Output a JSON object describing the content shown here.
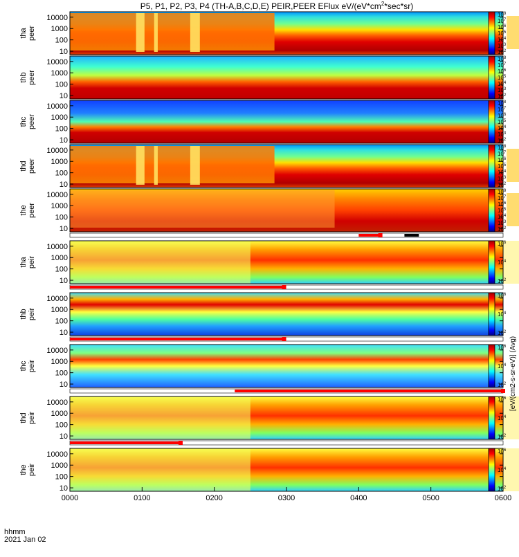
{
  "chart_data": {
    "type": "heatmap",
    "title": "P5, P1, P2, P3, P4 (TH-A,B,C,D,E) PEIR,PEER EFlux eV/(eV*cm",
    "title_sup": "2",
    "title_tail": "*sec*sr)",
    "date_label": "2021 Jan 02",
    "time_label": "hhmm",
    "x_ticks": [
      "0000",
      "0100",
      "0200",
      "0300",
      "0400",
      "0500",
      "0600"
    ],
    "x_range_min": [
      0,
      360
    ],
    "y_scale": "log",
    "y_ticks": [
      "10",
      "100",
      "1000",
      "10000"
    ],
    "colorbar": {
      "label": "[eV/(cm2-s-sr-eV)] (Avg)",
      "ticks_peer": [
        "10",
        "10",
        "10",
        "10",
        "10",
        "10",
        "10"
      ],
      "ticks_peer_exp": [
        "2",
        "3",
        "4",
        "5",
        "6",
        "7",
        "8"
      ],
      "ticks_peir": [
        "10",
        "10",
        "10"
      ],
      "ticks_peir_exp": [
        "2",
        "4",
        "6"
      ],
      "colors": [
        "#00007f",
        "#0000ff",
        "#0080ff",
        "#00ffff",
        "#80ff80",
        "#ffff00",
        "#ff8000",
        "#ff0000",
        "#a00000"
      ]
    },
    "panels": [
      {
        "probe": "tha",
        "species": "peer"
      },
      {
        "probe": "thb",
        "species": "peer"
      },
      {
        "probe": "thc",
        "species": "peer"
      },
      {
        "probe": "thd",
        "species": "peer"
      },
      {
        "probe": "the",
        "species": "peer"
      },
      {
        "probe": "tha",
        "species": "peir"
      },
      {
        "probe": "thb",
        "species": "peir"
      },
      {
        "probe": "thc",
        "species": "peir"
      },
      {
        "probe": "thd",
        "species": "peir"
      },
      {
        "probe": "the",
        "species": "peir"
      }
    ],
    "mode_bars": [
      {
        "after_panel": 4,
        "red_min": [
          240,
          258
        ],
        "black_min": [
          278,
          290
        ]
      },
      {
        "after_panel": 5,
        "red_min": [
          0,
          178
        ]
      },
      {
        "after_panel": 6,
        "red_min": [
          0,
          178
        ]
      },
      {
        "after_panel": 7,
        "red_min": [
          137,
          360
        ]
      },
      {
        "after_panel": 8,
        "red_min": [
          0,
          92
        ]
      }
    ]
  }
}
